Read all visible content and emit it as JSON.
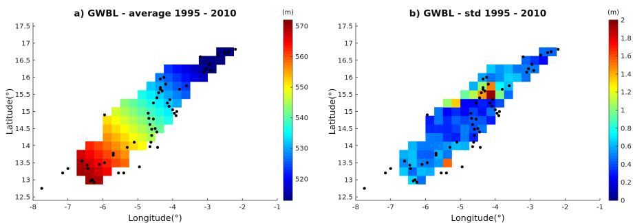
{
  "chart_data": [
    {
      "type": "heatmap",
      "title": "a) GWBL - average 1995 - 2010",
      "xlabel": "Longitude(°)",
      "ylabel": "Latitude(°)",
      "xlim": [
        -8,
        -1
      ],
      "ylim": [
        12.4,
        17.6
      ],
      "xticks": [
        "-8",
        "-7",
        "-6",
        "-5",
        "-4",
        "-3",
        "-2",
        "-1"
      ],
      "yticks": [
        "12.5",
        "13",
        "13.5",
        "14",
        "14.5",
        "15",
        "15.5",
        "16",
        "16.5",
        "17",
        "17.5"
      ],
      "cell_size_deg": 0.25,
      "colorbar": {
        "unit": "(m)",
        "range": [
          513,
          572
        ],
        "ticks": [
          "520",
          "530",
          "540",
          "550",
          "560",
          "570"
        ],
        "colormap": "jet"
      }
    },
    {
      "type": "heatmap",
      "title": "b) GWBL - std 1995 - 2010",
      "xlabel": "Longitude(°)",
      "ylabel": "Latitude(°)",
      "xlim": [
        -8,
        -1
      ],
      "ylim": [
        12.4,
        17.6
      ],
      "xticks": [
        "-8",
        "-7",
        "-6",
        "-5",
        "-4",
        "-3",
        "-2",
        "-1"
      ],
      "yticks": [
        "12.5",
        "13",
        "13.5",
        "14",
        "14.5",
        "15",
        "15.5",
        "16",
        "16.5",
        "17",
        "17.5"
      ],
      "cell_size_deg": 0.25,
      "colorbar": {
        "unit": "(m)",
        "range": [
          0,
          2
        ],
        "ticks": [
          "0",
          "0.2",
          "0.4",
          "0.6",
          "0.8",
          "1",
          "1.2",
          "1.4",
          "1.6",
          "1.8",
          "2"
        ],
        "colormap": "jet"
      }
    }
  ],
  "stations": [
    [
      -7.75,
      12.75
    ],
    [
      -7.15,
      13.2
    ],
    [
      -7.0,
      13.33
    ],
    [
      -6.6,
      13.55
    ],
    [
      -6.45,
      13.43
    ],
    [
      -6.43,
      13.33
    ],
    [
      -6.3,
      13.0
    ],
    [
      -6.25,
      12.93
    ],
    [
      -6.35,
      12.97
    ],
    [
      -6.1,
      13.45
    ],
    [
      -5.95,
      13.5
    ],
    [
      -5.7,
      13.78
    ],
    [
      -5.7,
      13.72
    ],
    [
      -5.55,
      13.2
    ],
    [
      -5.4,
      13.2
    ],
    [
      -5.95,
      14.9
    ],
    [
      -5.3,
      13.95
    ],
    [
      -5.1,
      14.1
    ],
    [
      -4.95,
      13.38
    ],
    [
      -4.7,
      14.95
    ],
    [
      -4.68,
      14.8
    ],
    [
      -4.65,
      14.62
    ],
    [
      -4.6,
      14.48
    ],
    [
      -4.6,
      14.3
    ],
    [
      -4.62,
      14.1
    ],
    [
      -4.65,
      13.97
    ],
    [
      -4.55,
      14.78
    ],
    [
      -4.5,
      14.5
    ],
    [
      -4.45,
      14.4
    ],
    [
      -4.43,
      13.95
    ],
    [
      -4.55,
      15.25
    ],
    [
      -4.45,
      15.4
    ],
    [
      -4.4,
      15.55
    ],
    [
      -4.35,
      15.65
    ],
    [
      -4.35,
      15.7
    ],
    [
      -4.3,
      15.6
    ],
    [
      -4.25,
      16.0
    ],
    [
      -4.35,
      15.95
    ],
    [
      -4.15,
      15.25
    ],
    [
      -4.1,
      15.15
    ],
    [
      -4.0,
      15.05
    ],
    [
      -3.95,
      14.95
    ],
    [
      -3.9,
      14.88
    ],
    [
      -3.88,
      15.0
    ],
    [
      -4.08,
      15.35
    ],
    [
      -4.2,
      15.8
    ],
    [
      -3.8,
      15.65
    ],
    [
      -3.6,
      15.75
    ],
    [
      -3.1,
      16.15
    ],
    [
      -3.05,
      16.25
    ],
    [
      -2.95,
      16.38
    ],
    [
      -2.9,
      16.2
    ],
    [
      -3.2,
      16.6
    ],
    [
      -2.7,
      16.65
    ],
    [
      -2.5,
      16.72
    ],
    [
      -2.4,
      16.75
    ],
    [
      -2.2,
      16.82
    ]
  ]
}
